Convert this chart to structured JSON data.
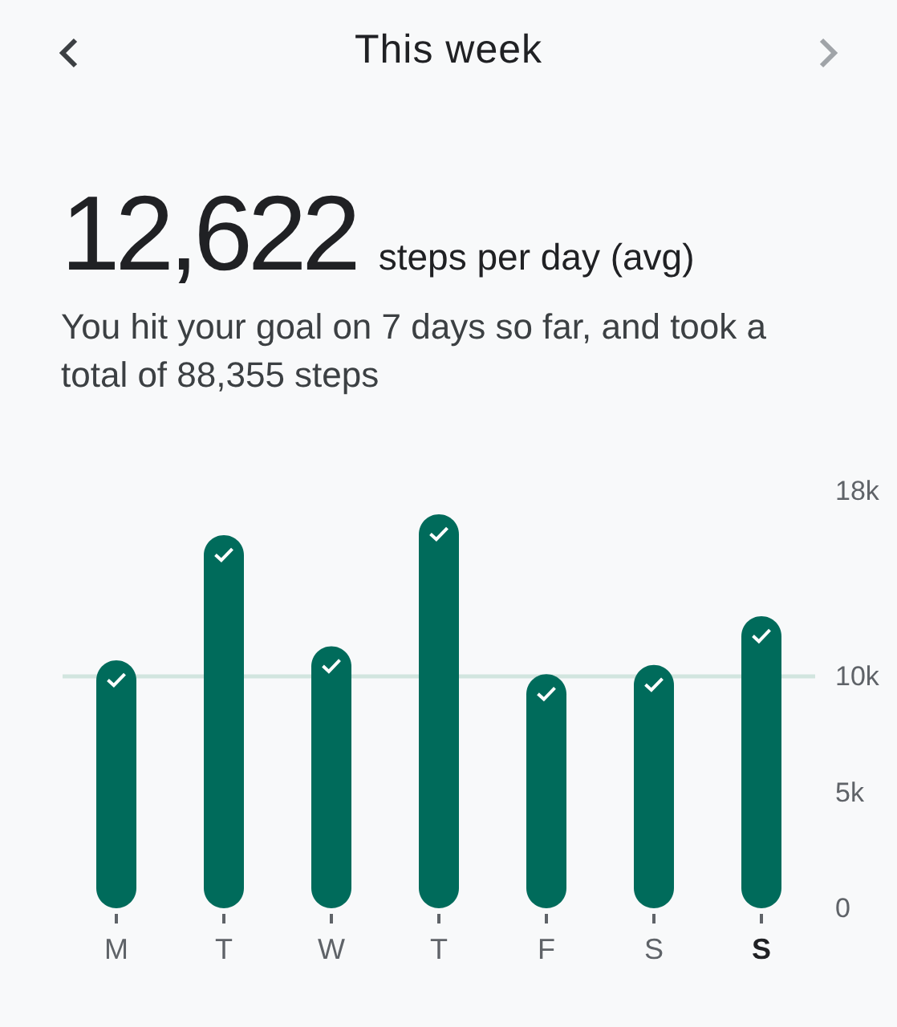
{
  "chart_data": {
    "type": "bar",
    "title": "This week",
    "annotations": [
      "12,622",
      "steps per day (avg)",
      "You hit your goal on 7 days so far, and took a total of 88,355 steps"
    ],
    "categories": [
      "M",
      "T",
      "W",
      "T",
      "F",
      "S",
      "S"
    ],
    "values": [
      10700,
      16100,
      11300,
      17000,
      10100,
      10500,
      12600
    ],
    "color": "#006b5b",
    "ylim": [
      0,
      18000
    ],
    "yticks": [
      0,
      {
        "value": 5000,
        "label": "5k"
      },
      {
        "value": 10000,
        "label": "10k"
      },
      {
        "value": 18000,
        "label": "18k"
      }
    ],
    "grid": false,
    "ref_lines": [
      {
        "axis": "y",
        "value": 10000,
        "color": "#d2e5df"
      }
    ]
  }
}
